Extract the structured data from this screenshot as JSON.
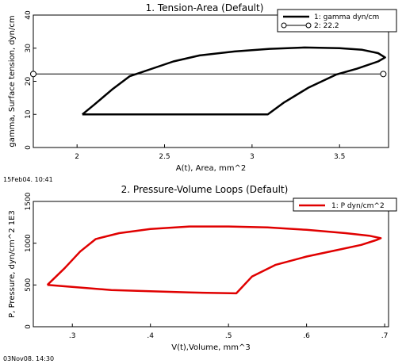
{
  "chart_data": [
    {
      "type": "line",
      "title": "1. Tension-Area (Default)",
      "xlabel": "A(t), Area, mm^2",
      "ylabel": "gamma, Surface tension, dyn/cm",
      "xlim": [
        1.75,
        3.78
      ],
      "ylim": [
        0,
        40
      ],
      "xticks": [
        2,
        2.5,
        3,
        3.5
      ],
      "yticks": [
        0,
        10,
        20,
        30,
        40
      ],
      "xtick_labels": [
        "2",
        "2.5",
        "3",
        "3.5"
      ],
      "ytick_labels": [
        "0",
        "10",
        "20",
        "30",
        "40"
      ],
      "legend_position": "top-right",
      "timestamp": "15Feb04. 10:41",
      "series": [
        {
          "name": "1: gamma dyn/cm",
          "color": "#000000",
          "style": "thick-line",
          "points": [
            [
              2.03,
              10
            ],
            [
              2.1,
              13
            ],
            [
              2.2,
              17.5
            ],
            [
              2.3,
              21.5
            ],
            [
              2.45,
              24.2
            ],
            [
              2.55,
              26
            ],
            [
              2.7,
              27.8
            ],
            [
              2.9,
              29
            ],
            [
              3.1,
              29.8
            ],
            [
              3.3,
              30.2
            ],
            [
              3.5,
              30
            ],
            [
              3.63,
              29.5
            ],
            [
              3.72,
              28.5
            ],
            [
              3.76,
              27.2
            ],
            [
              3.72,
              26
            ],
            [
              3.6,
              23.8
            ],
            [
              3.48,
              22
            ],
            [
              3.32,
              18
            ],
            [
              3.18,
              13.5
            ],
            [
              3.09,
              10
            ],
            [
              2.03,
              10
            ]
          ]
        },
        {
          "name": "2: 22.2",
          "color": "#000000",
          "style": "thin-line-circle-markers",
          "points": [
            [
              1.75,
              22.2
            ],
            [
              3.75,
              22.2
            ]
          ]
        }
      ]
    },
    {
      "type": "line",
      "title": "2. Pressure-Volume Loops (Default)",
      "xlabel": "V(t),Volume, mm^3",
      "ylabel": "P, Pressure, dyn/cm^2 1E3",
      "xlim": [
        0.25,
        0.705
      ],
      "ylim": [
        0,
        1500
      ],
      "xticks": [
        0.3,
        0.4,
        0.5,
        0.6,
        0.7
      ],
      "yticks": [
        0,
        500,
        1000,
        1500
      ],
      "xtick_labels": [
        ".3",
        ".4",
        ".5",
        ".6",
        ".7"
      ],
      "ytick_labels": [
        "0",
        "500",
        "1000",
        "1500"
      ],
      "legend_position": "top-right",
      "timestamp": "03Nov08. 14:30",
      "series": [
        {
          "name": "1: P dyn/cm^2",
          "color": "#e00000",
          "style": "thick-line",
          "points": [
            [
              0.268,
              500
            ],
            [
              0.29,
              700
            ],
            [
              0.31,
              900
            ],
            [
              0.33,
              1050
            ],
            [
              0.36,
              1120
            ],
            [
              0.4,
              1170
            ],
            [
              0.45,
              1200
            ],
            [
              0.5,
              1200
            ],
            [
              0.55,
              1190
            ],
            [
              0.6,
              1160
            ],
            [
              0.65,
              1120
            ],
            [
              0.68,
              1090
            ],
            [
              0.695,
              1060
            ],
            [
              0.69,
              1040
            ],
            [
              0.67,
              980
            ],
            [
              0.64,
              920
            ],
            [
              0.6,
              840
            ],
            [
              0.56,
              740
            ],
            [
              0.53,
              600
            ],
            [
              0.51,
              400
            ],
            [
              0.45,
              410
            ],
            [
              0.35,
              440
            ],
            [
              0.268,
              500
            ]
          ]
        }
      ]
    }
  ]
}
